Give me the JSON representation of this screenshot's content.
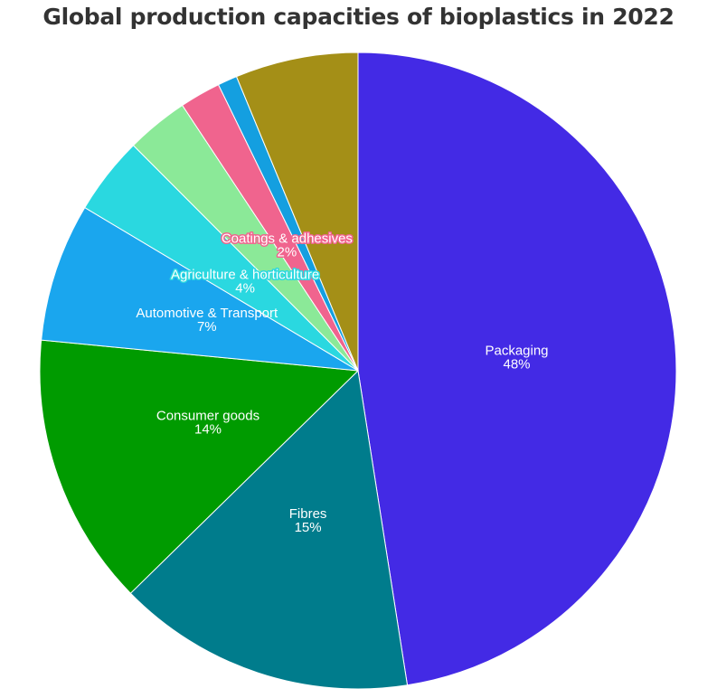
{
  "chart_data": {
    "type": "pie",
    "title": "Global production capacities of bioplastics in 2022",
    "start_angle_deg": 0,
    "direction": "clockwise",
    "slices": [
      {
        "label": "Packaging",
        "percent_label": "48%",
        "value": 48.0,
        "color": "#432ae5",
        "label_style": "plain"
      },
      {
        "label": "Fibres",
        "percent_label": "15%",
        "value": 15.3,
        "color": "#007c8c",
        "label_style": "plain"
      },
      {
        "label": "Consumer goods",
        "percent_label": "14%",
        "value": 14.0,
        "color": "#009b00",
        "label_style": "plain"
      },
      {
        "label": "Automotive & Transport",
        "percent_label": "7%",
        "value": 7.1,
        "color": "#1aa6ee",
        "label_style": "plain"
      },
      {
        "label": "Agriculture & horticulture",
        "percent_label": "4%",
        "value": 4.0,
        "color": "#2ad8e0",
        "label_style": "outlined"
      },
      {
        "label": "",
        "percent_label": "",
        "value": 3.2,
        "color": "#8be998",
        "label_style": "none"
      },
      {
        "label": "Coatings & adhesives",
        "percent_label": "2%",
        "value": 2.1,
        "color": "#f0648e",
        "label_style": "outlined"
      },
      {
        "label": "",
        "percent_label": "",
        "value": 1.0,
        "color": "#149fe0",
        "label_style": "none"
      },
      {
        "label": "",
        "percent_label": "",
        "value": 6.3,
        "color": "#a48f17",
        "label_style": "none"
      }
    ]
  }
}
